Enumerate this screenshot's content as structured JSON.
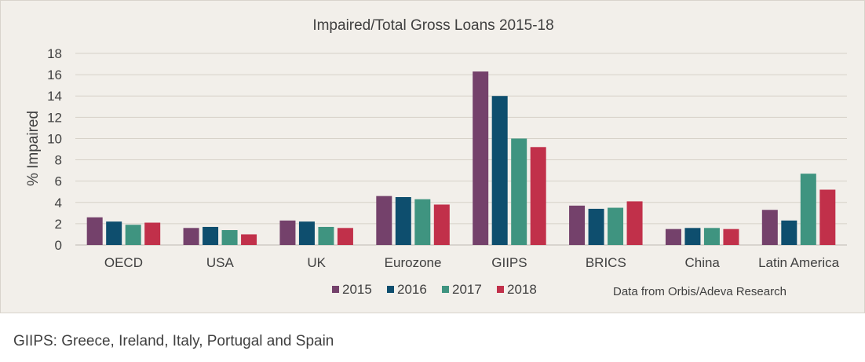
{
  "chart_data": {
    "type": "bar",
    "title": "Impaired/Total Gross Loans 2015-18",
    "ylabel": "% Impaired",
    "xlabel": "",
    "ylim": [
      0,
      18
    ],
    "yticks": [
      "0",
      "2",
      "4",
      "6",
      "8",
      "10",
      "12",
      "14",
      "16",
      "18"
    ],
    "grid": true,
    "legend_position": "bottom",
    "categories": [
      "OECD",
      "USA",
      "UK",
      "Eurozone",
      "GIIPS",
      "BRICS",
      "China",
      "Latin America"
    ],
    "series": [
      {
        "name": "2015",
        "color": "#74416b",
        "values": [
          2.6,
          1.6,
          2.3,
          4.6,
          16.3,
          3.7,
          1.5,
          3.3
        ]
      },
      {
        "name": "2016",
        "color": "#0e4e6e",
        "values": [
          2.2,
          1.7,
          2.2,
          4.5,
          14.0,
          3.4,
          1.6,
          2.3
        ]
      },
      {
        "name": "2017",
        "color": "#3f9480",
        "values": [
          1.9,
          1.4,
          1.7,
          4.3,
          10.0,
          3.5,
          1.6,
          6.7
        ]
      },
      {
        "name": "2018",
        "color": "#c1304a",
        "values": [
          2.1,
          1.0,
          1.6,
          3.8,
          9.2,
          4.1,
          1.5,
          5.2
        ]
      }
    ],
    "source_note": "Data from Orbis/Adeva Research"
  },
  "footnote": "GIIPS: Greece, Ireland, Italy, Portugal and Spain"
}
